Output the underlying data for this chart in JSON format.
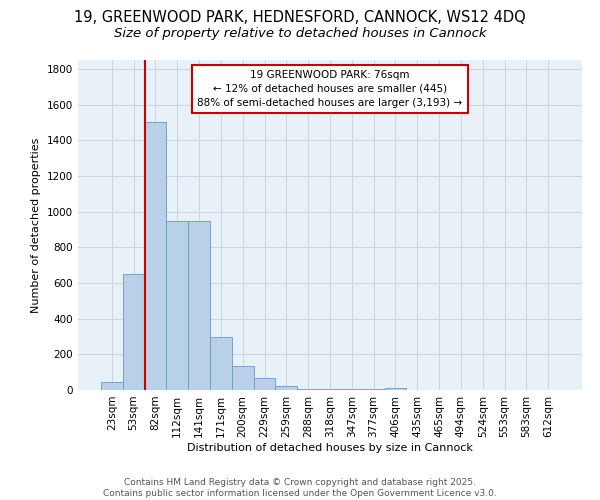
{
  "title_line1": "19, GREENWOOD PARK, HEDNESFORD, CANNOCK, WS12 4DQ",
  "title_line2": "Size of property relative to detached houses in Cannock",
  "xlabel": "Distribution of detached houses by size in Cannock",
  "ylabel": "Number of detached properties",
  "bar_labels": [
    "23sqm",
    "53sqm",
    "82sqm",
    "112sqm",
    "141sqm",
    "171sqm",
    "200sqm",
    "229sqm",
    "259sqm",
    "288sqm",
    "318sqm",
    "347sqm",
    "377sqm",
    "406sqm",
    "435sqm",
    "465sqm",
    "494sqm",
    "524sqm",
    "553sqm",
    "583sqm",
    "612sqm"
  ],
  "bar_values": [
    45,
    650,
    1500,
    950,
    950,
    295,
    135,
    65,
    25,
    5,
    5,
    3,
    3,
    13,
    1,
    0,
    0,
    0,
    0,
    0,
    0
  ],
  "bar_color": "#b8d0e8",
  "bar_edgecolor": "#6699cc",
  "background_color": "#e8f0f8",
  "grid_color": "#c8d4e0",
  "vline_color": "#cc0000",
  "annotation_text": "19 GREENWOOD PARK: 76sqm\n← 12% of detached houses are smaller (445)\n88% of semi-detached houses are larger (3,193) →",
  "annotation_box_facecolor": "white",
  "annotation_box_edgecolor": "#cc0000",
  "ylim": [
    0,
    1850
  ],
  "yticks": [
    0,
    200,
    400,
    600,
    800,
    1000,
    1200,
    1400,
    1600,
    1800
  ],
  "footer_text": "Contains HM Land Registry data © Crown copyright and database right 2025.\nContains public sector information licensed under the Open Government Licence v3.0.",
  "title_fontsize": 10.5,
  "subtitle_fontsize": 9.5,
  "label_fontsize": 8,
  "tick_fontsize": 7.5,
  "footer_fontsize": 6.5
}
